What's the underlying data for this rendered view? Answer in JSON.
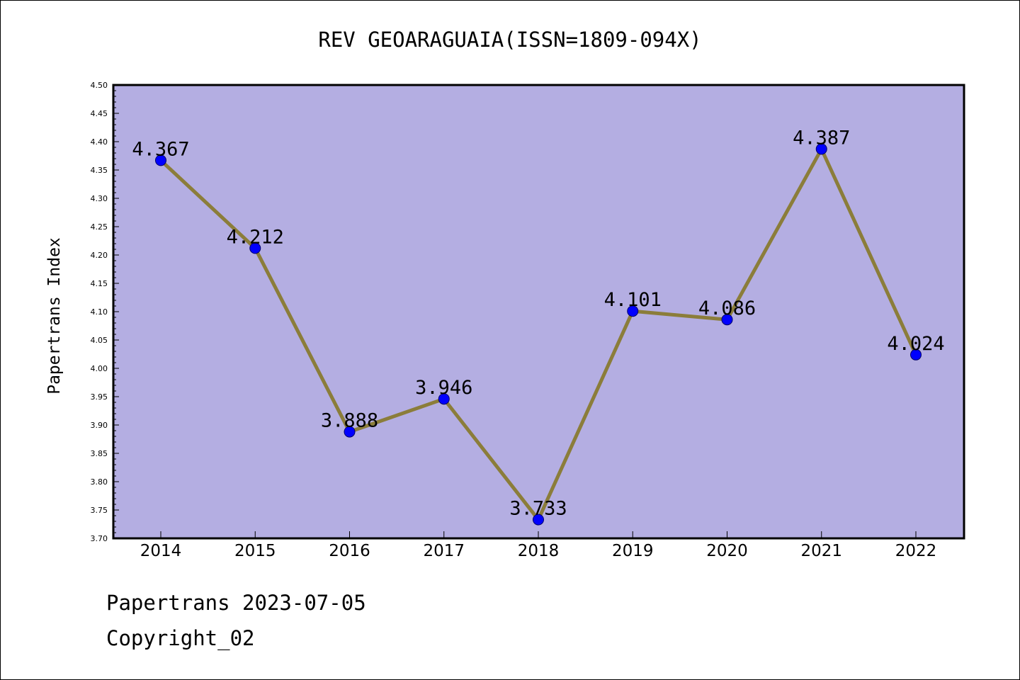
{
  "chart_data": {
    "type": "line",
    "title": "REV GEOARAGUAIA(ISSN=1809-094X)",
    "xlabel": "",
    "ylabel": "Papertrans Index",
    "categories": [
      "2014",
      "2015",
      "2016",
      "2017",
      "2018",
      "2019",
      "2020",
      "2021",
      "2022"
    ],
    "values": [
      4.367,
      4.212,
      3.888,
      3.946,
      3.733,
      4.101,
      4.086,
      4.387,
      4.024
    ],
    "data_labels": [
      "4.367",
      "4.212",
      "3.888",
      "3.946",
      "3.733",
      "4.101",
      "4.086",
      "4.387",
      "4.024"
    ],
    "ylim": [
      3.7,
      4.5
    ],
    "yticks": [
      "3.70",
      "3.75",
      "3.80",
      "3.85",
      "3.90",
      "3.95",
      "4.00",
      "4.05",
      "4.10",
      "4.15",
      "4.20",
      "4.25",
      "4.30",
      "4.35",
      "4.40",
      "4.45",
      "4.50"
    ],
    "grid": false,
    "legend": "none",
    "colors": {
      "plot_background": "#b4aee2",
      "line": "#8b7d3a",
      "marker": "#0000ff",
      "axis": "#000000"
    }
  },
  "footer": {
    "line1": "Papertrans 2023-07-05",
    "line2": "Copyright_02"
  }
}
